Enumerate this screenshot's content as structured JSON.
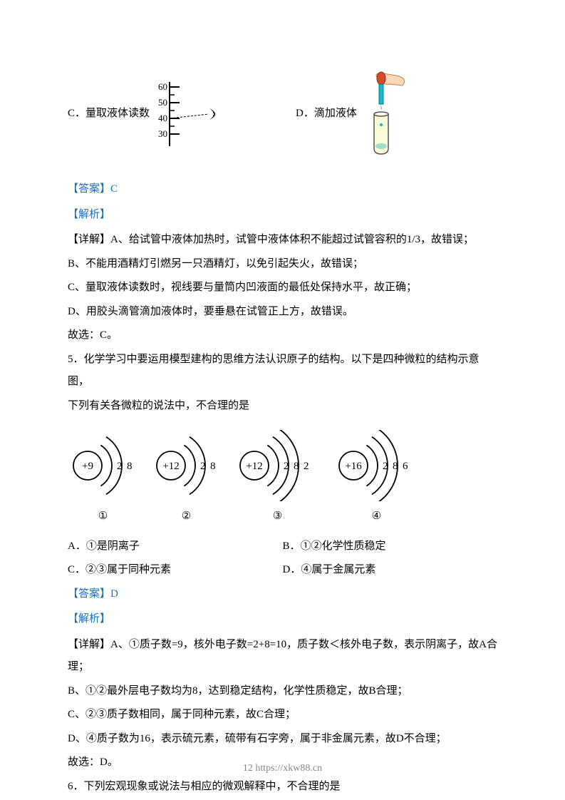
{
  "q4": {
    "optC": "C．量取液体读数",
    "optD": "D．滴加液体",
    "cylinder": {
      "ticks": [
        "60",
        "50",
        "40",
        "30"
      ],
      "body_color": "#000000",
      "eye_color": "#000000",
      "dash_color": "#000000"
    },
    "dropper": {
      "tube_stroke": "#555555",
      "tube_fill": "#fbfbd8",
      "liquid_fill": "#17b7c9",
      "skin_fill": "#f9d8b8",
      "bulb_fill": "#d94a2a"
    },
    "answer_label": "【答案】C",
    "analysis_label": "【解析】",
    "explain_lines": [
      "【详解】A、给试管中液体加热时，试管中液体体积不能超过试管容积的1/3，故错误；",
      "B、不能用酒精灯引燃另一只酒精灯，以免引起失火，故错误；",
      "C、量取液体读数时，视线要与量筒内凹液面的最低处保持水平，故正确；",
      "D、用胶头滴管滴加液体时，要垂悬在试管正上方，故错误。",
      "故选：C。"
    ]
  },
  "q5": {
    "stem1": "5．化学学习中要运用模型建构的思维方法认识原子的结构。以下是四种微粒的结构示意图，",
    "stem2": "下列有关各微粒的说法中，不合理的是",
    "atoms": [
      {
        "center": "+9",
        "shells": [
          "2",
          "8"
        ],
        "label": "①"
      },
      {
        "center": "+12",
        "shells": [
          "2",
          "8"
        ],
        "label": "②"
      },
      {
        "center": "+12",
        "shells": [
          "2",
          "8",
          "2"
        ],
        "label": "③"
      },
      {
        "center": "+16",
        "shells": [
          "2",
          "8",
          "6"
        ],
        "label": "④"
      }
    ],
    "atom_style": {
      "stroke": "#000000",
      "fontsize": 15
    },
    "options": {
      "A": "A．①是阴离子",
      "B": "B．①②化学性质稳定",
      "C": "C．②③属于同种元素",
      "D": "D．④属于金属元素"
    },
    "answer_label": "【答案】D",
    "analysis_label": "【解析】",
    "explain_lines": [
      "【详解】A、①质子数=9，核外电子数=2+8=10，质子数＜核外电子数，表示阴离子，故A合理；",
      "B、①②最外层电子数均为8，达到稳定结构，化学性质稳定，故B合理；",
      "C、②③质子数相同，属于同种元素，故C合理；",
      "D、④质子数为16，表示硫元素，硫带有石字旁，属于非金属元素，故D不合理；",
      "故选：D。"
    ]
  },
  "q6": {
    "stem": "6．下列宏观现象或说法与相应的微观解释中，不合理的是"
  },
  "footer": "12 https://xkw88.cn",
  "colors": {
    "link": "#1f6fb5",
    "text": "#000000",
    "footer": "#888888"
  }
}
